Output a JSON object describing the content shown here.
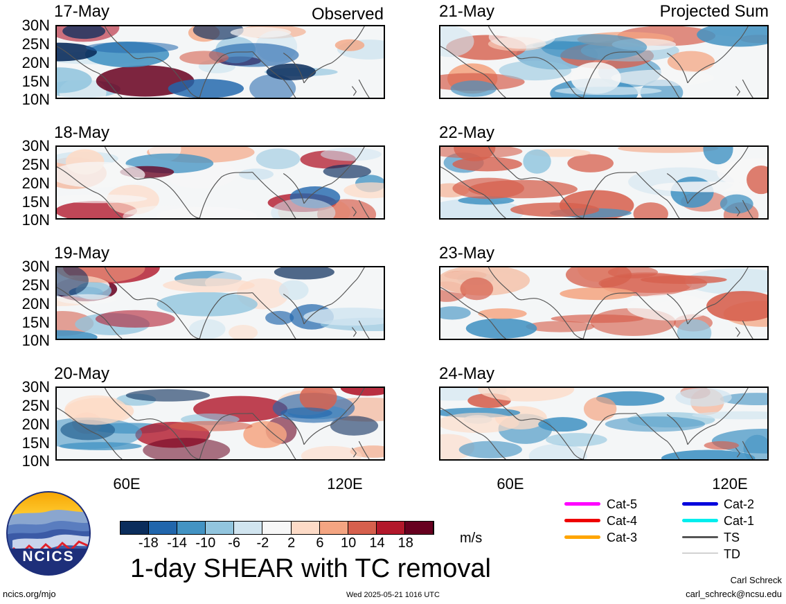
{
  "header": {
    "left_tag": "Observed",
    "right_tag": "Projected Sum"
  },
  "panels_left": [
    {
      "date": "17-May"
    },
    {
      "date": "18-May"
    },
    {
      "date": "19-May"
    },
    {
      "date": "20-May"
    }
  ],
  "panels_right": [
    {
      "date": "21-May"
    },
    {
      "date": "22-May"
    },
    {
      "date": "23-May"
    },
    {
      "date": "24-May"
    }
  ],
  "lat_labels": [
    "30N",
    "25N",
    "20N",
    "15N",
    "10N"
  ],
  "lon_labels": [
    "60E",
    "120E"
  ],
  "colorbar": {
    "ticks": [
      "-18",
      "-14",
      "-10",
      "-6",
      "-2",
      "2",
      "6",
      "10",
      "14",
      "18"
    ],
    "colors": [
      "#0b2d5c",
      "#2166ac",
      "#4393c3",
      "#92c5de",
      "#d1e5f0",
      "#f7f7f7",
      "#fddbc7",
      "#f4a582",
      "#d6604d",
      "#b2182b",
      "#67001f"
    ],
    "unit": "m/s"
  },
  "title": "1-day SHEAR with TC removal",
  "logo": {
    "text": "NCICS"
  },
  "legend": {
    "left": [
      {
        "label": "Cat-5",
        "color": "#ff00ff"
      },
      {
        "label": "Cat-4",
        "color": "#ee0000"
      },
      {
        "label": "Cat-3",
        "color": "#ffa500"
      }
    ],
    "right": [
      {
        "label": "Cat-2",
        "color": "#0000dd"
      },
      {
        "label": "Cat-1",
        "color": "#00eeee"
      },
      {
        "label": "TS",
        "color": "#555555"
      },
      {
        "label": "TD",
        "color": "#aaaaaa"
      }
    ]
  },
  "footer": {
    "url": "ncics.org/mjo",
    "timestamp": "Wed 2025-05-21 1016 UTC",
    "author": "Carl Schreck",
    "email": "carl_schreck@ncsu.edu"
  }
}
